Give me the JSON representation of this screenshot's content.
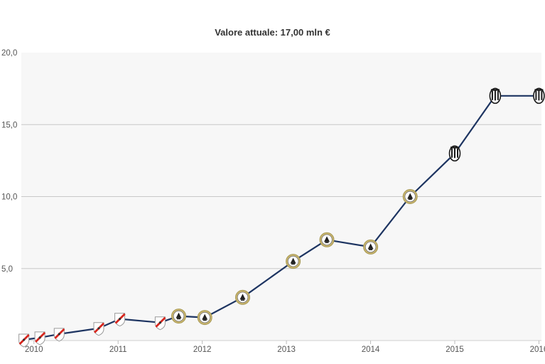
{
  "chart_data": {
    "type": "line",
    "title": "Valore attuale: 17,00 mln €",
    "xlabel": "",
    "ylabel": "",
    "ylim": [
      0,
      20
    ],
    "xlim": [
      2009.85,
      2016.03
    ],
    "y_ticks": [
      {
        "value": 5,
        "label": "5,0"
      },
      {
        "value": 10,
        "label": "10,0"
      },
      {
        "value": 15,
        "label": "15,0"
      },
      {
        "value": 20,
        "label": "20,0"
      }
    ],
    "x_ticks": [
      {
        "value": 2010,
        "label": "2010"
      },
      {
        "value": 2011,
        "label": "2011"
      },
      {
        "value": 2012,
        "label": "2012"
      },
      {
        "value": 2013,
        "label": "2013"
      },
      {
        "value": 2014,
        "label": "2014"
      },
      {
        "value": 2015,
        "label": "2015"
      },
      {
        "value": 2016,
        "label": "2016"
      }
    ],
    "grid": true,
    "series": [
      {
        "color": "#1d3461",
        "points": [
          {
            "x": 2009.88,
            "y": 0.05,
            "club": "river"
          },
          {
            "x": 2010.07,
            "y": 0.2,
            "club": "river"
          },
          {
            "x": 2010.3,
            "y": 0.45,
            "club": "river"
          },
          {
            "x": 2010.77,
            "y": 0.85,
            "club": "river"
          },
          {
            "x": 2011.02,
            "y": 1.5,
            "club": "river"
          },
          {
            "x": 2011.5,
            "y": 1.25,
            "club": "river"
          },
          {
            "x": 2011.72,
            "y": 1.7,
            "club": "udinese"
          },
          {
            "x": 2012.03,
            "y": 1.6,
            "club": "udinese"
          },
          {
            "x": 2012.48,
            "y": 3.0,
            "club": "udinese"
          },
          {
            "x": 2013.08,
            "y": 5.5,
            "club": "udinese"
          },
          {
            "x": 2013.48,
            "y": 7.0,
            "club": "udinese"
          },
          {
            "x": 2014.0,
            "y": 6.5,
            "club": "udinese"
          },
          {
            "x": 2014.47,
            "y": 10.0,
            "club": "udinese"
          },
          {
            "x": 2015.0,
            "y": 13.0,
            "club": "juventus"
          },
          {
            "x": 2015.48,
            "y": 17.0,
            "club": "juventus"
          },
          {
            "x": 2016.0,
            "y": 17.0,
            "club": "juventus"
          }
        ]
      }
    ]
  },
  "colors": {
    "line": "#1d3461",
    "plot_bg": "#f7f7f7",
    "grid": "#c8c8c8",
    "river_red": "#d7261e",
    "udinese_gold": "#c8b46e",
    "juventus_black": "#1a1a1a"
  }
}
